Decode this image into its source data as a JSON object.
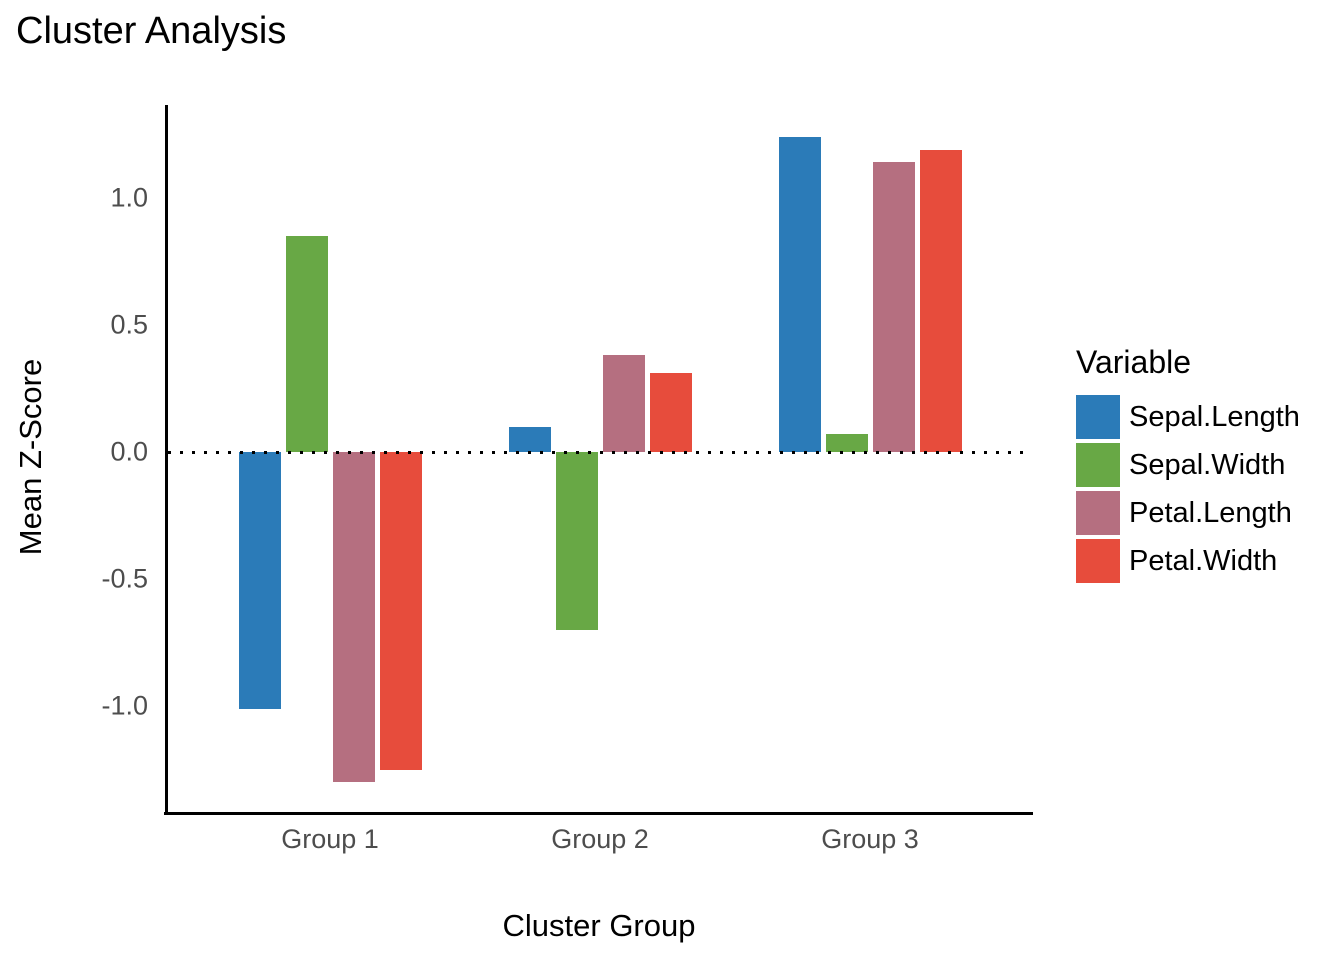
{
  "chart_data": {
    "type": "bar",
    "title": "Cluster Analysis",
    "xlabel": "Cluster Group",
    "ylabel": "Mean Z-Score",
    "legend_title": "Variable",
    "legend_position": "right",
    "grid": false,
    "zero_reference_line": "dotted",
    "categories": [
      "Group 1",
      "Group 2",
      "Group 3"
    ],
    "series": [
      {
        "name": "Sepal.Length",
        "color": "#2b7bb8",
        "values": [
          -1.01,
          0.1,
          1.24
        ]
      },
      {
        "name": "Sepal.Width",
        "color": "#68a845",
        "values": [
          0.85,
          -0.7,
          0.07
        ]
      },
      {
        "name": "Petal.Length",
        "color": "#b56f80",
        "values": [
          -1.3,
          0.38,
          1.14
        ]
      },
      {
        "name": "Petal.Width",
        "color": "#e74c3c",
        "values": [
          -1.25,
          0.31,
          1.19
        ]
      }
    ],
    "yticks": [
      "1.0",
      "0.5",
      "0.0",
      "-0.5",
      "-1.0"
    ],
    "ylim": [
      -1.43,
      1.37
    ],
    "tick_label_color": "#4d4d4d",
    "axis_color": "#000000"
  }
}
